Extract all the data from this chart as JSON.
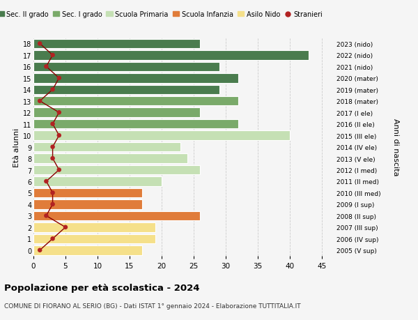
{
  "ages": [
    18,
    17,
    16,
    15,
    14,
    13,
    12,
    11,
    10,
    9,
    8,
    7,
    6,
    5,
    4,
    3,
    2,
    1,
    0
  ],
  "bar_values": [
    26,
    43,
    29,
    32,
    29,
    32,
    26,
    32,
    40,
    23,
    24,
    26,
    20,
    17,
    17,
    26,
    19,
    19,
    17
  ],
  "stranieri": [
    1,
    3,
    2,
    4,
    3,
    1,
    4,
    3,
    4,
    3,
    3,
    4,
    2,
    3,
    3,
    2,
    5,
    3,
    1
  ],
  "right_labels": [
    "2005 (V sup)",
    "2006 (IV sup)",
    "2007 (III sup)",
    "2008 (II sup)",
    "2009 (I sup)",
    "2010 (III med)",
    "2011 (II med)",
    "2012 (I med)",
    "2013 (V ele)",
    "2014 (IV ele)",
    "2015 (III ele)",
    "2016 (II ele)",
    "2017 (I ele)",
    "2018 (mater)",
    "2019 (mater)",
    "2020 (mater)",
    "2021 (nido)",
    "2022 (nido)",
    "2023 (nido)"
  ],
  "bar_colors": {
    "sec2": "#4a7c4e",
    "sec1": "#7aaa6a",
    "primaria": "#c5e0b4",
    "infanzia": "#e07c3a",
    "nido": "#f5e08a"
  },
  "age_categories": {
    "sec2": [
      14,
      15,
      16,
      17,
      18
    ],
    "sec1": [
      11,
      12,
      13
    ],
    "primaria": [
      6,
      7,
      8,
      9,
      10
    ],
    "infanzia": [
      3,
      4,
      5
    ],
    "nido": [
      0,
      1,
      2
    ]
  },
  "title": "Popolazione per età scolastica - 2024",
  "subtitle": "COMUNE DI FIORANO AL SERIO (BG) - Dati ISTAT 1° gennaio 2024 - Elaborazione TUTTITALIA.IT",
  "ylabel_left": "Età alunni",
  "ylabel_right": "Anni di nascita",
  "xlim": [
    0,
    47
  ],
  "ylim": [
    -0.5,
    18.5
  ],
  "bg_color": "#f5f5f5",
  "grid_color": "#cccccc",
  "legend_labels": [
    "Sec. II grado",
    "Sec. I grado",
    "Scuola Primaria",
    "Scuola Infanzia",
    "Asilo Nido",
    "Stranieri"
  ],
  "stranieri_color": "#b22222",
  "stranieri_line_color": "#8b0000"
}
